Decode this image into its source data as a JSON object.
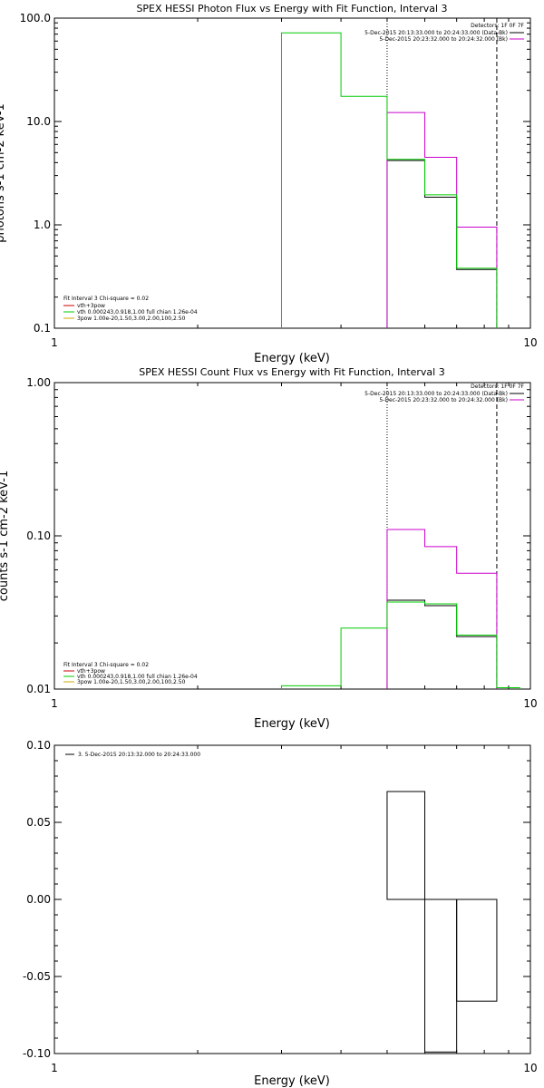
{
  "chart_data": [
    {
      "type": "line",
      "title": "SPEX HESSI Photon Flux vs Energy with Fit Function, Interval 3",
      "xlabel": "Energy (keV)",
      "ylabel": "photons s-1 cm-2 keV-1",
      "xscale": "log",
      "yscale": "log",
      "xlim": [
        1,
        10
      ],
      "ylim": [
        0.1,
        100
      ],
      "xticks": [
        1,
        10
      ],
      "xtick_labels": [
        "1",
        "10"
      ],
      "yticks": [
        0.1,
        1,
        10,
        100
      ],
      "ytick_labels": [
        "0.1",
        "1.0",
        "10.0",
        "100.0"
      ],
      "vlines": [
        {
          "x": 5.0,
          "style": "dotted"
        },
        {
          "x": 8.5,
          "style": "dashed"
        }
      ],
      "series": [
        {
          "name": "5-Dec-2015 20:13:33.000 to 20:24:33.000 (Data-Bk)",
          "color": "#000000",
          "edges": [
            5.0,
            6.0,
            7.0,
            8.5
          ],
          "values": [
            4.2,
            1.85,
            0.37
          ]
        },
        {
          "name": "5-Dec-2015 20:23:32.000 to 20:24:32.000 (Bk)",
          "color": "#cc00cc",
          "edges": [
            5.0,
            6.0,
            7.0,
            8.5
          ],
          "values": [
            12.2,
            4.5,
            0.95
          ]
        },
        {
          "name": "vth 0.000243,0.918,1.00  full chian 1.26e-04",
          "color": "#00cc00",
          "edges": [
            3.0,
            4.0,
            5.0,
            6.0,
            7.0,
            8.5
          ],
          "values": [
            72,
            17.5,
            4.3,
            1.95,
            0.38
          ]
        }
      ],
      "header_legend": {
        "title": "Detectors: 1F 0F 7F",
        "entries": [
          {
            "label": "5-Dec-2015 20:13:33.000 to 20:24:33.000 (Data-Bk)",
            "color": "#000000"
          },
          {
            "label": "5-Dec-2015 20:23:32.000 to 20:24:32.000 (Bk)",
            "color": "#cc00cc"
          }
        ]
      },
      "fit_legend": {
        "title": "Fit Interval 3   Chi-square = 0.02",
        "entries": [
          {
            "label": "vth+3pow",
            "color": "#cc0000"
          },
          {
            "label": "vth 0.000243,0.918,1.00  full chian 1.26e-04",
            "color": "#00cc00"
          },
          {
            "label": "3pow 1.00e-20,1.50,3.00,2.00,100,2.50",
            "color": "#ccaa00"
          }
        ]
      }
    },
    {
      "type": "line",
      "title": "SPEX HESSI Count Flux vs Energy with Fit Function, Interval 3",
      "xlabel": "Energy (keV)",
      "ylabel": "counts s-1 cm-2 keV-1",
      "xscale": "log",
      "yscale": "log",
      "xlim": [
        1,
        10
      ],
      "ylim": [
        0.01,
        1
      ],
      "xticks": [
        1,
        10
      ],
      "xtick_labels": [
        "1",
        "10"
      ],
      "yticks": [
        0.01,
        0.1,
        1
      ],
      "ytick_labels": [
        "0.01",
        "0.10",
        "1.00"
      ],
      "vlines": [
        {
          "x": 5.0,
          "style": "dotted"
        },
        {
          "x": 8.5,
          "style": "dashed"
        }
      ],
      "series": [
        {
          "name": "5-Dec-2015 20:13:33.000 to 20:24:33.000 (Data-Bk)",
          "color": "#000000",
          "edges": [
            5.0,
            6.0,
            7.0,
            8.5
          ],
          "values": [
            0.038,
            0.035,
            0.022
          ]
        },
        {
          "name": "5-Dec-2015 20:23:32.000 to 20:24:32.000 (Bk)",
          "color": "#cc00cc",
          "edges": [
            5.0,
            6.0,
            7.0,
            8.5
          ],
          "values": [
            0.11,
            0.085,
            0.057
          ]
        },
        {
          "name": "vth 0.000243,0.918,1.00  full chian 1.26e-04",
          "color": "#00cc00",
          "edges": [
            3.0,
            4.0,
            5.0,
            6.0,
            7.0,
            8.5,
            9.5
          ],
          "values": [
            0.0105,
            0.025,
            0.037,
            0.036,
            0.0225,
            0.0102
          ]
        }
      ],
      "header_legend": {
        "title": "Detectors: 1F 0F 7F",
        "entries": [
          {
            "label": "5-Dec-2015 20:13:33.000 to 20:24:33.000 (Data-Bk)",
            "color": "#000000"
          },
          {
            "label": "5-Dec-2015 20:23:32.000 to 20:24:32.000 (Bk)",
            "color": "#cc00cc"
          }
        ]
      },
      "fit_legend": {
        "title": "Fit Interval 3   Chi-square = 0.02",
        "entries": [
          {
            "label": "vth+3pow",
            "color": "#cc0000"
          },
          {
            "label": "vth 0.000243,0.918,1.00  full chian 1.26e-04",
            "color": "#00cc00"
          },
          {
            "label": "3pow 1.00e-20,1.50,3.00,2.00,100,2.50",
            "color": "#ccaa00"
          }
        ]
      }
    },
    {
      "type": "bar",
      "title": "",
      "xlabel": "Energy (keV)",
      "ylabel": "",
      "xscale": "log",
      "yscale": "linear",
      "xlim": [
        1,
        10
      ],
      "ylim": [
        -0.1,
        0.1
      ],
      "xticks": [
        1,
        10
      ],
      "xtick_labels": [
        "1",
        "10"
      ],
      "yticks": [
        -0.1,
        -0.05,
        0,
        0.05,
        0.1
      ],
      "ytick_labels": [
        "-0.10",
        "-0.05",
        "0.00",
        "0.05",
        "0.10"
      ],
      "series": [
        {
          "name": "3. 5-Dec-2015 20:13:32.000 to 20:24:33.000",
          "color": "#000000",
          "edges": [
            5.0,
            6.0,
            7.0,
            8.5
          ],
          "values": [
            0.07,
            -0.099,
            -0.066
          ]
        }
      ],
      "legend_entries": [
        {
          "label": "3. 5-Dec-2015 20:13:32.000 to 20:24:33.000",
          "color": "#000000"
        }
      ]
    }
  ]
}
